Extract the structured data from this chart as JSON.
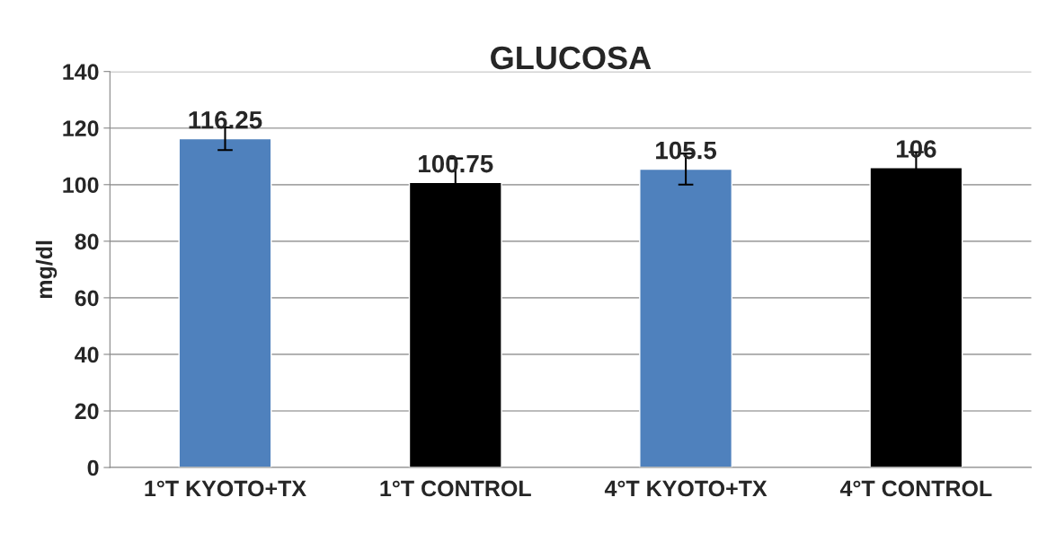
{
  "chart_data": {
    "type": "bar",
    "title": "GLUCOSA",
    "ylabel": "mg/dl",
    "categories": [
      "1°T KYOTO+TX",
      "1°T CONTROL",
      "4°T KYOTO+TX",
      "4°T CONTROL"
    ],
    "values": [
      116.25,
      100.75,
      105.5,
      106
    ],
    "colors": [
      "#4f81bd",
      "#000000",
      "#4f81bd",
      "#000000"
    ],
    "errors": [
      4,
      8.5,
      5.5,
      5.5
    ],
    "ylim": [
      0,
      140
    ],
    "yticks": [
      0,
      20,
      40,
      60,
      80,
      100,
      120,
      140
    ],
    "grid": "y",
    "data_labels": true
  }
}
